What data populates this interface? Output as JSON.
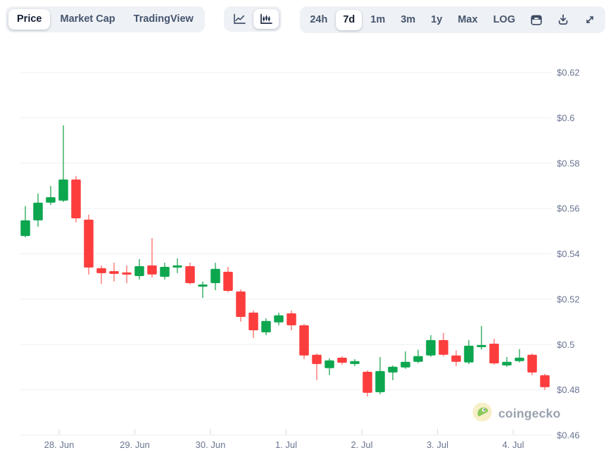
{
  "toolbar": {
    "view_tabs": [
      {
        "label": "Price",
        "selected": true
      },
      {
        "label": "Market Cap",
        "selected": false
      },
      {
        "label": "TradingView",
        "selected": false
      }
    ],
    "chart_types": [
      {
        "name": "line-chart-icon",
        "selected": false
      },
      {
        "name": "candlestick-chart-icon",
        "selected": true
      }
    ],
    "ranges": [
      {
        "label": "24h",
        "selected": false
      },
      {
        "label": "7d",
        "selected": true
      },
      {
        "label": "1m",
        "selected": false
      },
      {
        "label": "3m",
        "selected": false
      },
      {
        "label": "1y",
        "selected": false
      },
      {
        "label": "Max",
        "selected": false
      },
      {
        "label": "LOG",
        "selected": false
      }
    ],
    "tools": [
      {
        "name": "calendar-icon"
      },
      {
        "name": "download-icon"
      },
      {
        "name": "fullscreen-icon"
      }
    ]
  },
  "watermark": {
    "text": "coingecko"
  },
  "chart_data": {
    "type": "candlestick",
    "title": "",
    "interval": "4h",
    "grid": true,
    "legend": "none",
    "y_axis": {
      "position": "right",
      "tick_labels": [
        "$0.62",
        "$0.6",
        "$0.58",
        "$0.56",
        "$0.54",
        "$0.52",
        "$0.5",
        "$0.48",
        "$0.46"
      ],
      "tick_values": [
        0.62,
        0.6,
        0.58,
        0.56,
        0.54,
        0.52,
        0.5,
        0.48,
        0.46
      ],
      "range": [
        0.46,
        0.62
      ]
    },
    "x_axis": {
      "tick_labels": [
        "28. Jun",
        "29. Jun",
        "30. Jun",
        "1. Jul",
        "2. Jul",
        "3. Jul",
        "4. Jul"
      ]
    },
    "colors": {
      "up": "#0ca64f",
      "up_wick": "#6fc58f",
      "down": "#fc3d3d",
      "down_wick": "#ff9e9c"
    },
    "candles_ohlc_format": [
      "open",
      "high",
      "low",
      "close"
    ],
    "candles_ohlc": [
      [
        0.5479,
        0.5611,
        0.5473,
        0.5548
      ],
      [
        0.5548,
        0.5666,
        0.552,
        0.5626
      ],
      [
        0.5626,
        0.57,
        0.5616,
        0.565
      ],
      [
        0.5635,
        0.5967,
        0.5629,
        0.5728
      ],
      [
        0.5728,
        0.5744,
        0.5539,
        0.5557
      ],
      [
        0.5551,
        0.5573,
        0.5309,
        0.534
      ],
      [
        0.5337,
        0.5349,
        0.5268,
        0.5315
      ],
      [
        0.5324,
        0.5361,
        0.5278,
        0.5312
      ],
      [
        0.5318,
        0.5349,
        0.5271,
        0.5312
      ],
      [
        0.5302,
        0.5377,
        0.5287,
        0.5346
      ],
      [
        0.5349,
        0.547,
        0.5296,
        0.5309
      ],
      [
        0.5299,
        0.5361,
        0.5287,
        0.5343
      ],
      [
        0.534,
        0.538,
        0.5315,
        0.5349
      ],
      [
        0.5346,
        0.5361,
        0.5265,
        0.5271
      ],
      [
        0.5259,
        0.5278,
        0.5206,
        0.5265
      ],
      [
        0.5271,
        0.5361,
        0.524,
        0.5334
      ],
      [
        0.5321,
        0.5343,
        0.5231,
        0.5237
      ],
      [
        0.5234,
        0.5243,
        0.5101,
        0.5122
      ],
      [
        0.5141,
        0.515,
        0.5029,
        0.5063
      ],
      [
        0.5054,
        0.5116,
        0.5041,
        0.5104
      ],
      [
        0.5098,
        0.5141,
        0.5085,
        0.5129
      ],
      [
        0.5138,
        0.515,
        0.5063,
        0.5085
      ],
      [
        0.5085,
        0.5091,
        0.4936,
        0.4952
      ],
      [
        0.4955,
        0.4961,
        0.4843,
        0.4914
      ],
      [
        0.4896,
        0.4939,
        0.4865,
        0.493
      ],
      [
        0.4942,
        0.4948,
        0.4911,
        0.492
      ],
      [
        0.4914,
        0.4936,
        0.4905,
        0.4927
      ],
      [
        0.488,
        0.4886,
        0.4771,
        0.4787
      ],
      [
        0.479,
        0.4945,
        0.4781,
        0.4883
      ],
      [
        0.4877,
        0.4908,
        0.4843,
        0.4902
      ],
      [
        0.4899,
        0.497,
        0.4893,
        0.4924
      ],
      [
        0.4924,
        0.4977,
        0.4918,
        0.4949
      ],
      [
        0.4952,
        0.5042,
        0.4946,
        0.502
      ],
      [
        0.502,
        0.5051,
        0.4949,
        0.4955
      ],
      [
        0.4952,
        0.4974,
        0.4905,
        0.4924
      ],
      [
        0.4921,
        0.502,
        0.4914,
        0.4995
      ],
      [
        0.4989,
        0.5082,
        0.4977,
        0.4998
      ],
      [
        0.5004,
        0.5026,
        0.4911,
        0.4917
      ],
      [
        0.4908,
        0.4945,
        0.4902,
        0.4924
      ],
      [
        0.4927,
        0.498,
        0.4921,
        0.4942
      ],
      [
        0.4955,
        0.4961,
        0.4865,
        0.4877
      ],
      [
        0.4865,
        0.4871,
        0.48,
        0.4812
      ]
    ]
  }
}
